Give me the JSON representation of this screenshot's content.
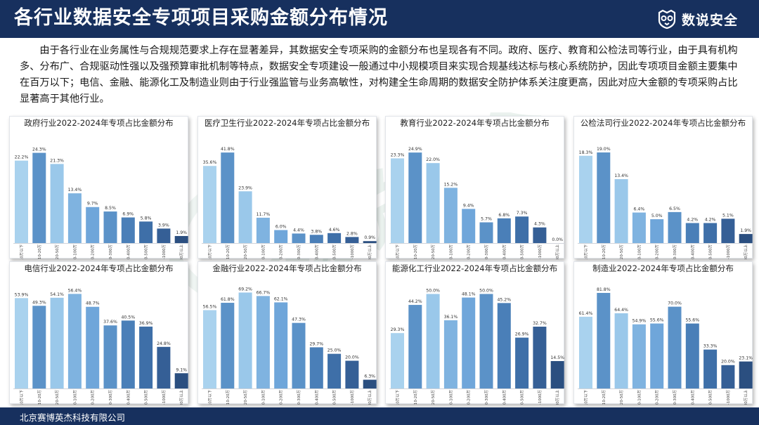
{
  "header": {
    "title": "各行业数据安全专项项目采购金额分布情况",
    "brand_name": "数说安全",
    "brand_icon": "owl-mask-icon"
  },
  "intro": "由于各行业在业务属性与合规规范要求上存在显著差异，其数据安全专项采购的金额分布也呈现各有不同。政府、医疗、教育和公检法司等行业，由于具有机构多、分布广、合规驱动性强以及强预算审批机制等特点，数据安全专项建设一般通过中小规模项目来实现合规基线达标与核心系统防护，因此专项项目金额主要集中在百万以下；电信、金融、能源化工及制造业则由于行业强监管与业务高敏性，对构建全生命周期的数据安全防护体系关注度更高，因此对应大金额的专项采购占比显著高于其他行业。",
  "footer": {
    "company": "北京赛博英杰科技有限公司"
  },
  "watermark": {
    "text": "数说安全",
    "sub": "REVIEWS"
  },
  "colors": {
    "header_bg": "#17305e",
    "bar_gradient": [
      "#a9d2ee",
      "#5b92c8",
      "#9ac8ea",
      "#7fb3e0",
      "#6fa6da",
      "#5b92c8",
      "#4a7fb8",
      "#3e6fa8",
      "#355f96",
      "#2b4f80"
    ]
  },
  "chart_data": [
    {
      "type": "bar",
      "title": "政府行业2022-2024年专项占比金额分布",
      "categories": [
        "10万以下",
        "10-20万",
        "20-50万",
        "50-100万",
        "100-200万",
        "200-300万",
        "300-400万",
        "400-500万",
        "500-1000万",
        "1000万以上"
      ],
      "values": [
        22.2,
        24.3,
        21.3,
        13.4,
        9.7,
        8.5,
        6.9,
        5.8,
        3.9,
        1.9
      ],
      "value_labels": [
        "22.2%",
        "24.3%",
        "21.3%",
        "13.4%",
        "9.7%",
        "8.5%",
        "6.9%",
        "5.8%",
        "3.9%",
        "1.9%"
      ],
      "ylim": [
        0,
        28
      ]
    },
    {
      "type": "bar",
      "title": "医疗卫生行业2022-2024年专项占比金额分布",
      "categories": [
        "10万以下",
        "10-20万",
        "20-50万",
        "50-100万",
        "100-200万",
        "200-300万",
        "300-400万",
        "400-500万",
        "500-1000万",
        "1000万以上"
      ],
      "values": [
        35.6,
        41.8,
        23.9,
        11.7,
        6.0,
        4.4,
        3.8,
        4.6,
        2.8,
        0.9
      ],
      "value_labels": [
        "35.6%",
        "41.8%",
        "23.9%",
        "11.7%",
        "6.0%",
        "4.4%",
        "3.8%",
        "4.6%",
        "2.8%",
        "0.9%"
      ],
      "ylim": [
        0,
        48
      ]
    },
    {
      "type": "bar",
      "title": "教育行业2022-2024年专项占比金额分布",
      "categories": [
        "10万以下",
        "10-20万",
        "20-50万",
        "50-100万",
        "100-200万",
        "200-300万",
        "300-400万",
        "400-500万",
        "500-1000万",
        "1000万以上"
      ],
      "values": [
        23.3,
        24.9,
        22.0,
        15.2,
        9.4,
        5.7,
        6.8,
        7.3,
        4.3,
        0.0
      ],
      "value_labels": [
        "23.3%",
        "24.9%",
        "22.0%",
        "15.2%",
        "9.4%",
        "5.7%",
        "6.8%",
        "7.3%",
        "4.3%",
        "0.0%"
      ],
      "ylim": [
        0,
        28.6
      ]
    },
    {
      "type": "bar",
      "title": "公检法司行业2022-2024年专项占比金额分布",
      "categories": [
        "10万以下",
        "10-20万",
        "20-50万",
        "50-100万",
        "100-200万",
        "200-300万",
        "300-400万",
        "400-500万",
        "500-1000万",
        "1000万以上"
      ],
      "values": [
        18.3,
        19.0,
        13.4,
        6.4,
        5.0,
        6.5,
        4.2,
        4.2,
        5.1,
        1.9
      ],
      "value_labels": [
        "18.3%",
        "19.0%",
        "13.4%",
        "6.4%",
        "5.0%",
        "6.5%",
        "4.2%",
        "4.2%",
        "5.1%",
        "1.9%"
      ],
      "ylim": [
        0,
        21.8
      ]
    },
    {
      "type": "bar",
      "title": "电信行业2022-2024年专项占比金额分布",
      "categories": [
        "10万以下",
        "10-20万",
        "20-50万",
        "50-100万",
        "100-200万",
        "200-300万",
        "300-400万",
        "400-500万",
        "500-1000万",
        "1000万以上"
      ],
      "values": [
        53.9,
        49.3,
        54.1,
        56.4,
        48.7,
        37.6,
        40.5,
        36.9,
        24.8,
        9.1
      ],
      "value_labels": [
        "53.9%",
        "49.3%",
        "54.1%",
        "56.4%",
        "48.7%",
        "37.6%",
        "40.5%",
        "36.9%",
        "24.8%",
        "9.1%"
      ],
      "ylim": [
        0,
        62
      ]
    },
    {
      "type": "bar",
      "title": "金融行业2022-2024年专项占比金额分布",
      "categories": [
        "10万以下",
        "10-20万",
        "20-50万",
        "50-100万",
        "100-200万",
        "200-300万",
        "300-400万",
        "400-500万",
        "500-1000万",
        "1000万以上"
      ],
      "values": [
        56.5,
        61.8,
        69.2,
        66.7,
        62.1,
        47.3,
        29.7,
        25.0,
        20.0,
        6.3
      ],
      "value_labels": [
        "56.5%",
        "61.8%",
        "69.2%",
        "66.7%",
        "62.1%",
        "47.3%",
        "29.7%",
        "25.0%",
        "20.0%",
        "6.3%"
      ],
      "ylim": [
        0,
        75
      ]
    },
    {
      "type": "bar",
      "title": "能源化工行业2022-2024年专项占比金额分布",
      "categories": [
        "10万以下",
        "10-20万",
        "20-50万",
        "50-100万",
        "100-200万",
        "200-300万",
        "300-400万",
        "400-500万",
        "500-1000万",
        "1000万以上"
      ],
      "values": [
        29.3,
        44.2,
        50.0,
        36.1,
        48.1,
        50.0,
        45.2,
        26.9,
        32.7,
        14.5
      ],
      "value_labels": [
        "29.3%",
        "44.2%",
        "50.0%",
        "36.1%",
        "48.1%",
        "50.0%",
        "45.2%",
        "26.9%",
        "32.7%",
        "14.5%"
      ],
      "ylim": [
        0,
        55
      ]
    },
    {
      "type": "bar",
      "title": "制造业2022-2024年专项占比金额分布",
      "categories": [
        "10万以下",
        "10-20万",
        "20-50万",
        "50-100万",
        "100-200万",
        "200-300万",
        "300-400万",
        "400-500万",
        "500-1000万",
        "1000万以上"
      ],
      "values": [
        61.4,
        81.8,
        64.4,
        54.9,
        55.6,
        70.0,
        55.6,
        33.3,
        20.0,
        23.1
      ],
      "value_labels": [
        "61.4%",
        "81.8%",
        "64.4%",
        "54.9%",
        "55.6%",
        "70.0%",
        "55.6%",
        "33.3%",
        "20.0%",
        "23.1%"
      ],
      "ylim": [
        0,
        89
      ]
    }
  ]
}
